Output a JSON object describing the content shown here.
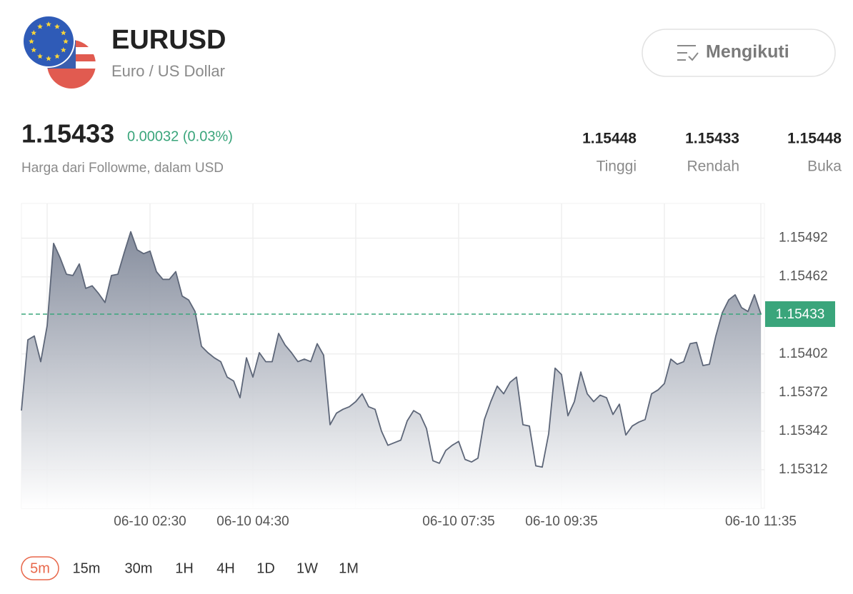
{
  "header": {
    "symbol": "EURUSD",
    "name": "Euro / US Dollar",
    "follow_button": "Mengikuti"
  },
  "quote": {
    "price": "1.15433",
    "change": "0.00032 (0.03%)",
    "source": "Harga dari Followme, dalam USD",
    "stats": [
      {
        "value": "1.15448",
        "label": "Tinggi"
      },
      {
        "value": "1.15433",
        "label": "Rendah"
      },
      {
        "value": "1.15448",
        "label": "Buka"
      }
    ]
  },
  "chart_data": {
    "type": "area",
    "line_color": "#5d6678",
    "fill_color": "#7f8798",
    "categories": [
      null,
      null,
      null,
      null,
      null,
      null,
      null,
      null,
      null,
      null,
      null,
      null,
      null,
      null,
      null,
      null,
      null,
      null,
      null,
      null,
      "06-10 02:30",
      null,
      null,
      null,
      null,
      null,
      null,
      null,
      null,
      null,
      null,
      null,
      null,
      null,
      null,
      null,
      "06-10 04:30",
      null,
      null,
      null,
      null,
      null,
      null,
      null,
      null,
      null,
      null,
      null,
      null,
      null,
      null,
      null,
      null,
      null,
      null,
      null,
      null,
      null,
      null,
      null,
      null,
      null,
      null,
      null,
      null,
      null,
      null,
      null,
      "06-10 07:35",
      null,
      null,
      null,
      null,
      null,
      null,
      null,
      null,
      null,
      null,
      null,
      null,
      null,
      null,
      null,
      "06-10 09:35",
      null,
      null,
      null,
      null,
      null,
      null,
      null,
      null,
      null,
      null,
      null,
      null,
      null,
      null,
      null,
      null,
      null,
      null,
      null,
      null,
      null,
      null,
      null,
      null,
      null,
      null,
      null,
      null,
      null,
      null,
      "06-10 11:35"
    ],
    "values": [
      1.15358,
      1.15413,
      1.15416,
      1.15396,
      1.15424,
      1.15488,
      1.15477,
      1.15464,
      1.15463,
      1.15472,
      1.15453,
      1.15455,
      1.15449,
      1.15442,
      1.15463,
      1.15464,
      1.15481,
      1.15497,
      1.15483,
      1.1548,
      1.15482,
      1.15466,
      1.1546,
      1.1546,
      1.15466,
      1.15447,
      1.15444,
      1.15435,
      1.15408,
      1.15403,
      1.15399,
      1.15396,
      1.15384,
      1.15381,
      1.15368,
      1.15399,
      1.15384,
      1.15403,
      1.15396,
      1.15396,
      1.15418,
      1.15409,
      1.15403,
      1.15396,
      1.15398,
      1.15396,
      1.1541,
      1.15401,
      1.15347,
      1.15356,
      1.15359,
      1.15361,
      1.15365,
      1.15371,
      1.15361,
      1.15359,
      1.15342,
      1.15331,
      1.15333,
      1.15335,
      1.1535,
      1.15358,
      1.15355,
      1.15344,
      1.15319,
      1.15317,
      1.15327,
      1.15331,
      1.15334,
      1.1532,
      1.15318,
      1.15321,
      1.15351,
      1.15365,
      1.15377,
      1.15371,
      1.1538,
      1.15384,
      1.15347,
      1.15346,
      1.15315,
      1.15314,
      1.1534,
      1.15391,
      1.15386,
      1.15354,
      1.15365,
      1.15388,
      1.15371,
      1.15365,
      1.1537,
      1.15368,
      1.15355,
      1.15363,
      1.15339,
      1.15346,
      1.15349,
      1.15351,
      1.15371,
      1.15374,
      1.15379,
      1.15398,
      1.15394,
      1.15396,
      1.1541,
      1.15411,
      1.15393,
      1.15394,
      1.15416,
      1.15434,
      1.15444,
      1.15448,
      1.15438,
      1.15435,
      1.15448,
      1.15433
    ],
    "ylim": [
      1.15282,
      1.15519
    ],
    "yticks": [
      1.15312,
      1.15342,
      1.15372,
      1.15402,
      1.15462,
      1.15492
    ],
    "xgrid": [
      4,
      20,
      36,
      52,
      68,
      84,
      100,
      115
    ],
    "grid": true,
    "last_price": 1.15433,
    "last_price_color": "#3aa57b"
  },
  "timeframes": {
    "options": [
      "5m",
      "15m",
      "30m",
      "1H",
      "4H",
      "1D",
      "1W",
      "1M"
    ],
    "selected": 0
  }
}
